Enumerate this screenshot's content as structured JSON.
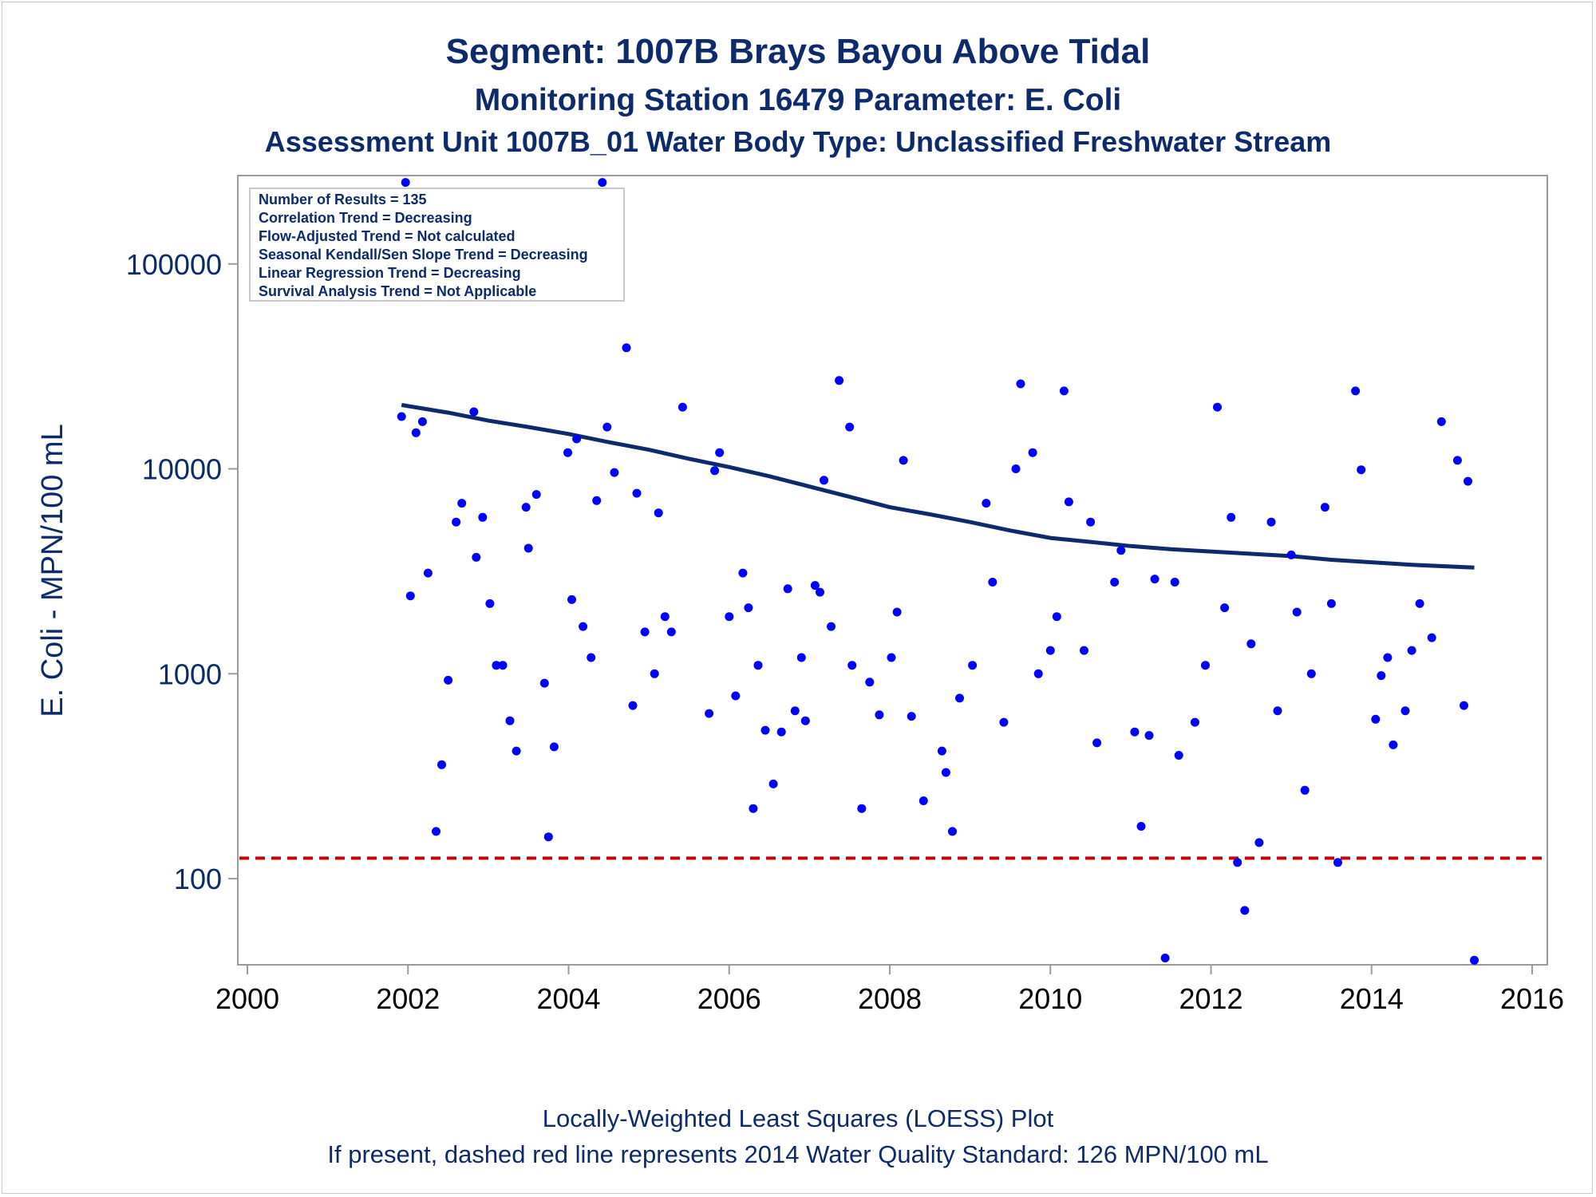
{
  "titles": {
    "line1": "Segment: 1007B  Brays Bayou Above Tidal",
    "line2": "Monitoring Station 16479 Parameter: E. Coli",
    "line3": "Assessment Unit 1007B_01   Water Body Type: Unclassified Freshwater Stream"
  },
  "legend_box": {
    "lines": [
      "Number of Results = 135",
      "Correlation Trend = Decreasing",
      "Flow-Adjusted Trend = Not calculated",
      "Seasonal Kendall/Sen Slope Trend = Decreasing",
      "Linear Regression Trend = Decreasing",
      "Survival Analysis Trend = Not Applicable"
    ]
  },
  "footnotes": {
    "line1": "Locally-Weighted Least Squares (LOESS) Plot",
    "line2": "If present, dashed red line represents 2014 Water Quality Standard: 126 MPN/100 mL"
  },
  "colors": {
    "title": "#0d2a6b",
    "points": "#0000ff",
    "loess": "#0d2a6b",
    "standard_line": "#cc0000",
    "axis": "#9a9a9a"
  },
  "chart_data": {
    "type": "scatter",
    "title": "Segment: 1007B  Brays Bayou Above Tidal",
    "xlabel": "",
    "ylabel": "E. Coli - MPN/100 mL",
    "xlim": [
      2000,
      2016
    ],
    "ylim": [
      38,
      270000
    ],
    "yscale": "log",
    "grid": false,
    "x_ticks": [
      2000,
      2002,
      2004,
      2006,
      2008,
      2010,
      2012,
      2014,
      2016
    ],
    "y_ticks": [
      100,
      1000,
      10000,
      100000
    ],
    "x_tick_labels": [
      "2000",
      "2002",
      "2004",
      "2006",
      "2008",
      "2010",
      "2012",
      "2014",
      "2016"
    ],
    "y_tick_labels": [
      "100",
      "1000",
      "10000",
      "100000"
    ],
    "standard": {
      "value": 126
    },
    "points": [
      [
        2001.92,
        18000
      ],
      [
        2001.97,
        250000
      ],
      [
        2002.03,
        2400
      ],
      [
        2002.1,
        15000
      ],
      [
        2002.18,
        17000
      ],
      [
        2002.25,
        3100
      ],
      [
        2002.35,
        170
      ],
      [
        2002.42,
        360
      ],
      [
        2002.5,
        930
      ],
      [
        2002.6,
        5500
      ],
      [
        2002.67,
        6800
      ],
      [
        2002.82,
        19000
      ],
      [
        2002.85,
        3700
      ],
      [
        2002.93,
        5800
      ],
      [
        2003.02,
        2200
      ],
      [
        2003.1,
        1100
      ],
      [
        2003.18,
        1100
      ],
      [
        2003.27,
        590
      ],
      [
        2003.35,
        420
      ],
      [
        2003.47,
        6500
      ],
      [
        2003.5,
        4100
      ],
      [
        2003.6,
        7500
      ],
      [
        2003.7,
        900
      ],
      [
        2003.75,
        160
      ],
      [
        2003.82,
        440
      ],
      [
        2003.99,
        12000
      ],
      [
        2004.04,
        2300
      ],
      [
        2004.1,
        14000
      ],
      [
        2004.18,
        1700
      ],
      [
        2004.28,
        1200
      ],
      [
        2004.35,
        7000
      ],
      [
        2004.42,
        250000
      ],
      [
        2004.48,
        16000
      ],
      [
        2004.57,
        9600
      ],
      [
        2004.72,
        39000
      ],
      [
        2004.8,
        700
      ],
      [
        2004.85,
        7600
      ],
      [
        2004.95,
        1600
      ],
      [
        2005.07,
        1000
      ],
      [
        2005.12,
        6100
      ],
      [
        2005.2,
        1900
      ],
      [
        2005.28,
        1600
      ],
      [
        2005.42,
        20000
      ],
      [
        2005.75,
        640
      ],
      [
        2005.82,
        9800
      ],
      [
        2005.88,
        12000
      ],
      [
        2006.0,
        1900
      ],
      [
        2006.08,
        780
      ],
      [
        2006.17,
        3100
      ],
      [
        2006.24,
        2100
      ],
      [
        2006.3,
        220
      ],
      [
        2006.36,
        1100
      ],
      [
        2006.45,
        530
      ],
      [
        2006.55,
        290
      ],
      [
        2006.65,
        520
      ],
      [
        2006.73,
        2600
      ],
      [
        2006.82,
        660
      ],
      [
        2006.9,
        1200
      ],
      [
        2006.95,
        590
      ],
      [
        2007.07,
        2700
      ],
      [
        2007.13,
        2500
      ],
      [
        2007.18,
        8800
      ],
      [
        2007.27,
        1700
      ],
      [
        2007.37,
        27000
      ],
      [
        2007.5,
        16000
      ],
      [
        2007.53,
        1100
      ],
      [
        2007.65,
        220
      ],
      [
        2007.75,
        910
      ],
      [
        2007.87,
        630
      ],
      [
        2008.02,
        1200
      ],
      [
        2008.09,
        2000
      ],
      [
        2008.17,
        11000
      ],
      [
        2008.27,
        620
      ],
      [
        2008.42,
        240
      ],
      [
        2008.65,
        420
      ],
      [
        2008.7,
        330
      ],
      [
        2008.78,
        170
      ],
      [
        2008.87,
        760
      ],
      [
        2009.03,
        1100
      ],
      [
        2009.2,
        6800
      ],
      [
        2009.28,
        2800
      ],
      [
        2009.42,
        580
      ],
      [
        2009.57,
        10000
      ],
      [
        2009.63,
        26000
      ],
      [
        2009.78,
        12000
      ],
      [
        2009.85,
        1000
      ],
      [
        2010.0,
        1300
      ],
      [
        2010.08,
        1900
      ],
      [
        2010.17,
        24000
      ],
      [
        2010.23,
        6900
      ],
      [
        2010.42,
        1300
      ],
      [
        2010.5,
        5500
      ],
      [
        2010.58,
        460
      ],
      [
        2010.8,
        2800
      ],
      [
        2010.88,
        4000
      ],
      [
        2011.05,
        520
      ],
      [
        2011.13,
        180
      ],
      [
        2011.23,
        500
      ],
      [
        2011.3,
        2900
      ],
      [
        2011.43,
        41
      ],
      [
        2011.55,
        2800
      ],
      [
        2011.6,
        400
      ],
      [
        2011.8,
        580
      ],
      [
        2011.93,
        1100
      ],
      [
        2012.08,
        20000
      ],
      [
        2012.17,
        2100
      ],
      [
        2012.25,
        5800
      ],
      [
        2012.33,
        120
      ],
      [
        2012.42,
        70
      ],
      [
        2012.5,
        1400
      ],
      [
        2012.6,
        150
      ],
      [
        2012.75,
        5500
      ],
      [
        2012.83,
        660
      ],
      [
        2013.0,
        3800
      ],
      [
        2013.07,
        2000
      ],
      [
        2013.17,
        270
      ],
      [
        2013.25,
        1000
      ],
      [
        2013.42,
        6500
      ],
      [
        2013.5,
        2200
      ],
      [
        2013.58,
        120
      ],
      [
        2013.8,
        24000
      ],
      [
        2013.87,
        9900
      ],
      [
        2014.05,
        600
      ],
      [
        2014.12,
        980
      ],
      [
        2014.2,
        1200
      ],
      [
        2014.27,
        450
      ],
      [
        2014.42,
        660
      ],
      [
        2014.5,
        1300
      ],
      [
        2014.6,
        2200
      ],
      [
        2014.75,
        1500
      ],
      [
        2014.87,
        17000
      ],
      [
        2015.07,
        11000
      ],
      [
        2015.15,
        700
      ],
      [
        2015.2,
        8700
      ],
      [
        2015.28,
        40
      ]
    ],
    "loess": [
      [
        2001.92,
        20500
      ],
      [
        2002.5,
        18800
      ],
      [
        2003.0,
        17200
      ],
      [
        2003.5,
        16000
      ],
      [
        2004.0,
        14800
      ],
      [
        2004.5,
        13500
      ],
      [
        2005.0,
        12400
      ],
      [
        2005.5,
        11200
      ],
      [
        2006.0,
        10200
      ],
      [
        2006.5,
        9200
      ],
      [
        2007.0,
        8200
      ],
      [
        2007.5,
        7300
      ],
      [
        2008.0,
        6500
      ],
      [
        2008.5,
        6000
      ],
      [
        2009.0,
        5500
      ],
      [
        2009.5,
        5000
      ],
      [
        2010.0,
        4600
      ],
      [
        2010.5,
        4400
      ],
      [
        2011.0,
        4200
      ],
      [
        2011.5,
        4050
      ],
      [
        2012.0,
        3950
      ],
      [
        2012.5,
        3850
      ],
      [
        2013.0,
        3750
      ],
      [
        2013.5,
        3600
      ],
      [
        2014.0,
        3500
      ],
      [
        2014.5,
        3400
      ],
      [
        2015.28,
        3300
      ]
    ]
  }
}
